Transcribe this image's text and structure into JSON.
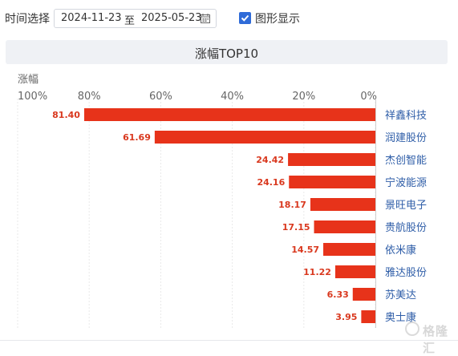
{
  "filter": {
    "time_label": "时间选择",
    "start_date": "2024-11-23",
    "separator": "至",
    "end_date": "2025-05-23",
    "show_chart_label": "图形显示",
    "show_chart_checked": true
  },
  "colors": {
    "bar": "#e7331a",
    "value_label": "#d9381e",
    "name_label": "#2f5ea8",
    "checkbox": "#2f6bd8"
  },
  "watermark": {
    "text": "格隆汇"
  },
  "chart_data": {
    "type": "bar",
    "orientation": "horizontal",
    "direction": "right-to-left",
    "title": "涨幅TOP10",
    "xlabel": "涨幅",
    "xlim": [
      0,
      100
    ],
    "ticks": [
      100,
      80,
      60,
      40,
      20,
      0
    ],
    "tick_labels": [
      "100%",
      "80%",
      "60%",
      "40%",
      "20%",
      "0%"
    ],
    "grid": true,
    "categories": [
      "祥鑫科技",
      "润建股份",
      "杰创智能",
      "宁波能源",
      "景旺电子",
      "贵航股份",
      "依米康",
      "雅达股份",
      "苏美达",
      "奥士康"
    ],
    "values": [
      81.4,
      61.69,
      24.42,
      24.16,
      18.17,
      17.15,
      14.57,
      11.22,
      6.33,
      3.95
    ],
    "value_labels": [
      "81.40",
      "61.69",
      "24.42",
      "24.16",
      "18.17",
      "17.15",
      "14.57",
      "11.22",
      "6.33",
      "3.95"
    ]
  }
}
